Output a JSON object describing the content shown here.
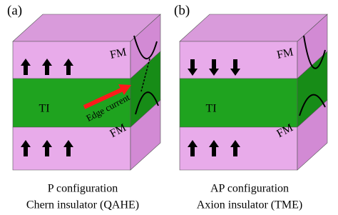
{
  "panels": [
    {
      "label": "(a)",
      "top_layer": "FM",
      "middle_layer": "TI",
      "bottom_layer": "FM",
      "annotation": "Edge current",
      "caption": [
        "P configuration",
        "Chern insulator (QAHE)"
      ]
    },
    {
      "label": "(b)",
      "top_layer": "FM",
      "middle_layer": "TI",
      "bottom_layer": "FM",
      "caption": [
        "AP configuration",
        "Axion insulator (TME)"
      ]
    }
  ]
}
